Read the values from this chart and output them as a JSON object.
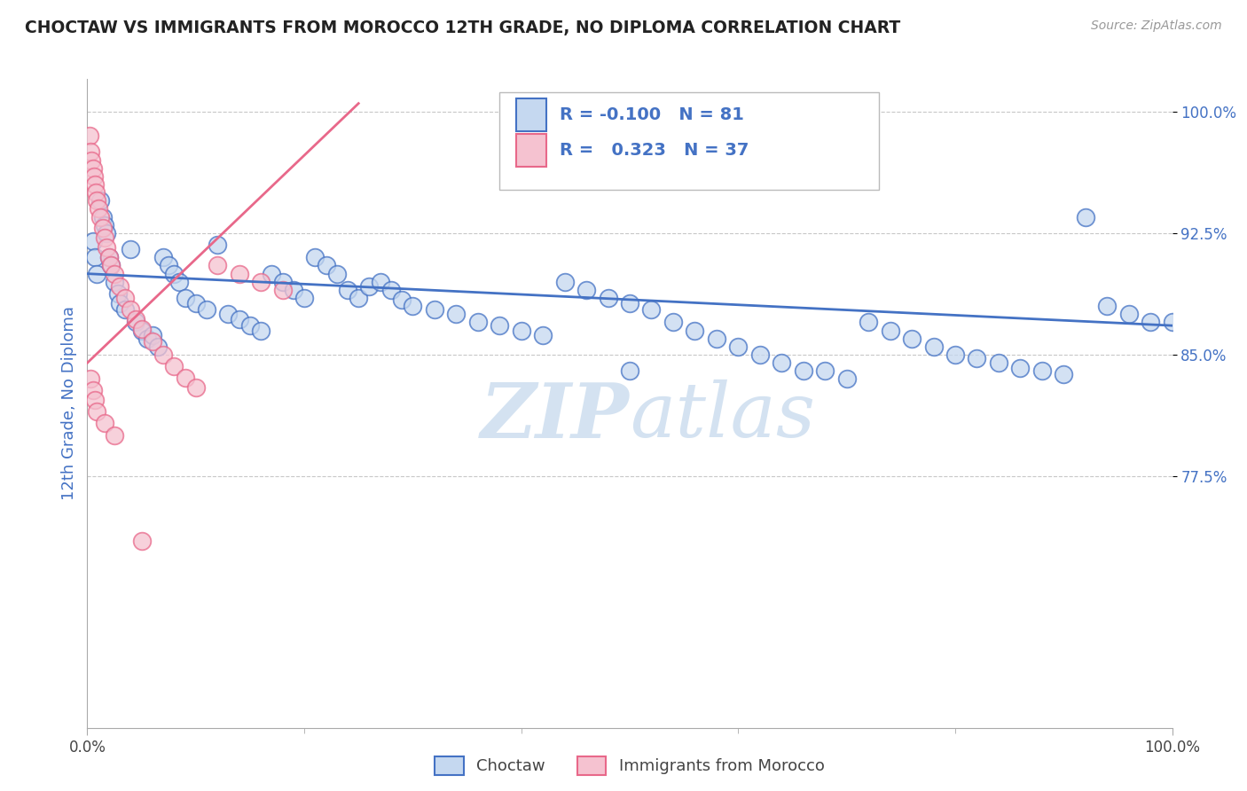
{
  "title": "CHOCTAW VS IMMIGRANTS FROM MOROCCO 12TH GRADE, NO DIPLOMA CORRELATION CHART",
  "source": "Source: ZipAtlas.com",
  "ylabel": "12th Grade, No Diploma",
  "ytick_values": [
    1.0,
    0.925,
    0.85,
    0.775
  ],
  "xlim": [
    0.0,
    1.0
  ],
  "ylim": [
    0.62,
    1.02
  ],
  "legend_entry1": {
    "label": "Choctaw",
    "R": "-0.100",
    "N": "81",
    "color": "#c5d8f0",
    "line_color": "#4472c4"
  },
  "legend_entry2": {
    "label": "Immigrants from Morocco",
    "R": "0.323",
    "N": "37",
    "color": "#f5c2d0",
    "line_color": "#e8688a"
  },
  "watermark": "ZIPatlas",
  "background_color": "#ffffff",
  "grid_color": "#c8c8c8",
  "choctaw_trend_x": [
    0.0,
    1.0
  ],
  "choctaw_trend_y": [
    0.9,
    0.868
  ],
  "morocco_trend_x": [
    0.0,
    0.25
  ],
  "morocco_trend_y": [
    0.845,
    1.005
  ],
  "choctaw_x": [
    0.005,
    0.007,
    0.009,
    0.012,
    0.014,
    0.016,
    0.018,
    0.02,
    0.022,
    0.025,
    0.028,
    0.03,
    0.035,
    0.04,
    0.045,
    0.05,
    0.055,
    0.06,
    0.065,
    0.07,
    0.075,
    0.08,
    0.085,
    0.09,
    0.1,
    0.11,
    0.12,
    0.13,
    0.14,
    0.15,
    0.16,
    0.17,
    0.18,
    0.19,
    0.2,
    0.21,
    0.22,
    0.23,
    0.24,
    0.25,
    0.26,
    0.27,
    0.28,
    0.29,
    0.3,
    0.32,
    0.34,
    0.36,
    0.38,
    0.4,
    0.42,
    0.44,
    0.46,
    0.48,
    0.5,
    0.52,
    0.54,
    0.56,
    0.58,
    0.6,
    0.62,
    0.64,
    0.66,
    0.68,
    0.7,
    0.72,
    0.74,
    0.76,
    0.78,
    0.8,
    0.82,
    0.84,
    0.86,
    0.88,
    0.9,
    0.92,
    0.94,
    0.96,
    0.98,
    1.0,
    0.5
  ],
  "choctaw_y": [
    0.92,
    0.91,
    0.9,
    0.945,
    0.935,
    0.93,
    0.925,
    0.91,
    0.905,
    0.895,
    0.888,
    0.882,
    0.878,
    0.915,
    0.87,
    0.865,
    0.86,
    0.862,
    0.855,
    0.91,
    0.905,
    0.9,
    0.895,
    0.885,
    0.882,
    0.878,
    0.918,
    0.875,
    0.872,
    0.868,
    0.865,
    0.9,
    0.895,
    0.89,
    0.885,
    0.91,
    0.905,
    0.9,
    0.89,
    0.885,
    0.892,
    0.895,
    0.89,
    0.884,
    0.88,
    0.878,
    0.875,
    0.87,
    0.868,
    0.865,
    0.862,
    0.895,
    0.89,
    0.885,
    0.882,
    0.878,
    0.87,
    0.865,
    0.86,
    0.855,
    0.85,
    0.845,
    0.84,
    0.84,
    0.835,
    0.87,
    0.865,
    0.86,
    0.855,
    0.85,
    0.848,
    0.845,
    0.842,
    0.84,
    0.838,
    0.935,
    0.88,
    0.875,
    0.87,
    0.87,
    0.84
  ],
  "morocco_x": [
    0.002,
    0.003,
    0.004,
    0.005,
    0.006,
    0.007,
    0.008,
    0.009,
    0.01,
    0.012,
    0.014,
    0.016,
    0.018,
    0.02,
    0.022,
    0.025,
    0.03,
    0.035,
    0.04,
    0.045,
    0.05,
    0.06,
    0.07,
    0.08,
    0.09,
    0.1,
    0.12,
    0.14,
    0.16,
    0.18,
    0.003,
    0.005,
    0.007,
    0.009,
    0.016,
    0.025,
    0.05
  ],
  "morocco_y": [
    0.985,
    0.975,
    0.97,
    0.965,
    0.96,
    0.955,
    0.95,
    0.945,
    0.94,
    0.935,
    0.928,
    0.922,
    0.916,
    0.91,
    0.905,
    0.9,
    0.892,
    0.885,
    0.878,
    0.872,
    0.866,
    0.858,
    0.85,
    0.843,
    0.836,
    0.83,
    0.905,
    0.9,
    0.895,
    0.89,
    0.835,
    0.828,
    0.822,
    0.815,
    0.808,
    0.8,
    0.735
  ]
}
